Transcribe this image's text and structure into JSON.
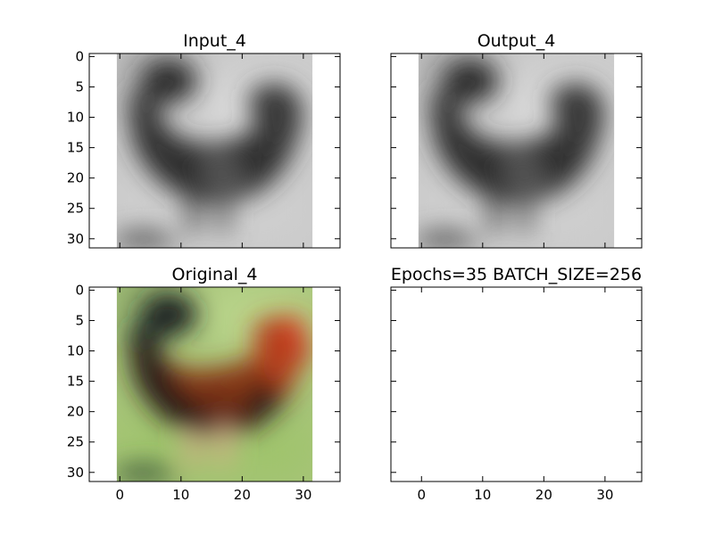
{
  "figure": {
    "background": "#ffffff",
    "axis_color": "#000000"
  },
  "chart_data": [
    {
      "type": "image",
      "title": "Input_4",
      "image": "grayscale-rooster",
      "xlim": [
        -5,
        36
      ],
      "ylim": [
        31.5,
        -0.5
      ],
      "extent": [
        -0.5,
        31.5,
        31.5,
        -0.5
      ],
      "xticks": [
        0,
        10,
        20,
        30
      ],
      "yticks": [
        0,
        5,
        10,
        15,
        20,
        25,
        30
      ],
      "show_xticklabels": false,
      "show_yticklabels": true
    },
    {
      "type": "image",
      "title": "Output_4",
      "image": "grayscale-rooster",
      "xlim": [
        -5,
        36
      ],
      "ylim": [
        31.5,
        -0.5
      ],
      "extent": [
        -0.5,
        31.5,
        31.5,
        -0.5
      ],
      "xticks": [
        0,
        10,
        20,
        30
      ],
      "yticks": [
        0,
        5,
        10,
        15,
        20,
        25,
        30
      ],
      "show_xticklabels": false,
      "show_yticklabels": false
    },
    {
      "type": "image",
      "title": "Original_4",
      "image": "color-rooster",
      "xlim": [
        -5,
        36
      ],
      "ylim": [
        31.5,
        -0.5
      ],
      "extent": [
        -0.5,
        31.5,
        31.5,
        -0.5
      ],
      "xticks": [
        0,
        10,
        20,
        30
      ],
      "yticks": [
        0,
        5,
        10,
        15,
        20,
        25,
        30
      ],
      "show_xticklabels": true,
      "show_yticklabels": true
    },
    {
      "type": "empty",
      "title": "Epochs=35 BATCH_SIZE=256",
      "xlim": [
        -5,
        36
      ],
      "ylim": [
        31.5,
        -0.5
      ],
      "xticks": [
        0,
        10,
        20,
        30
      ],
      "yticks": [
        0,
        5,
        10,
        15,
        20,
        25,
        30
      ],
      "show_xticklabels": true,
      "show_yticklabels": false
    }
  ]
}
